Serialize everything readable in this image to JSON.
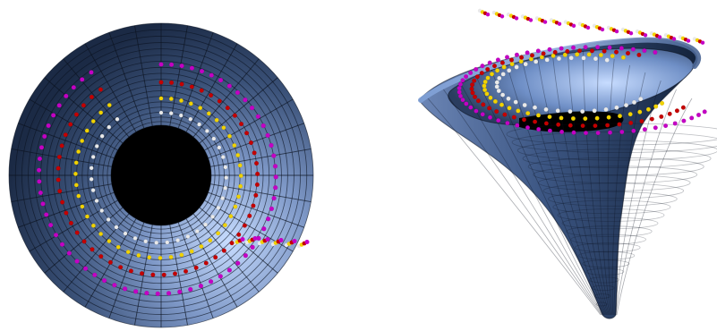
{
  "scene": {
    "colors": {
      "background": "#ffffff",
      "surface_light": "#c7dcff",
      "surface_mid": "#5f7aa8",
      "surface_dark": "#1b2a45",
      "mesh": "#0b1220",
      "hole": "#000000",
      "ring_white": "#e9e9e9",
      "ring_yellow": "#f1d200",
      "ring_red": "#c40000",
      "ring_magenta": "#c400c4"
    },
    "views": [
      {
        "id": "top-view",
        "kind": "funnel-top"
      },
      {
        "id": "perspective-view",
        "kind": "funnel-side"
      }
    ],
    "rings": [
      {
        "name": "white"
      },
      {
        "name": "yellow"
      },
      {
        "name": "red"
      },
      {
        "name": "magenta"
      }
    ]
  }
}
